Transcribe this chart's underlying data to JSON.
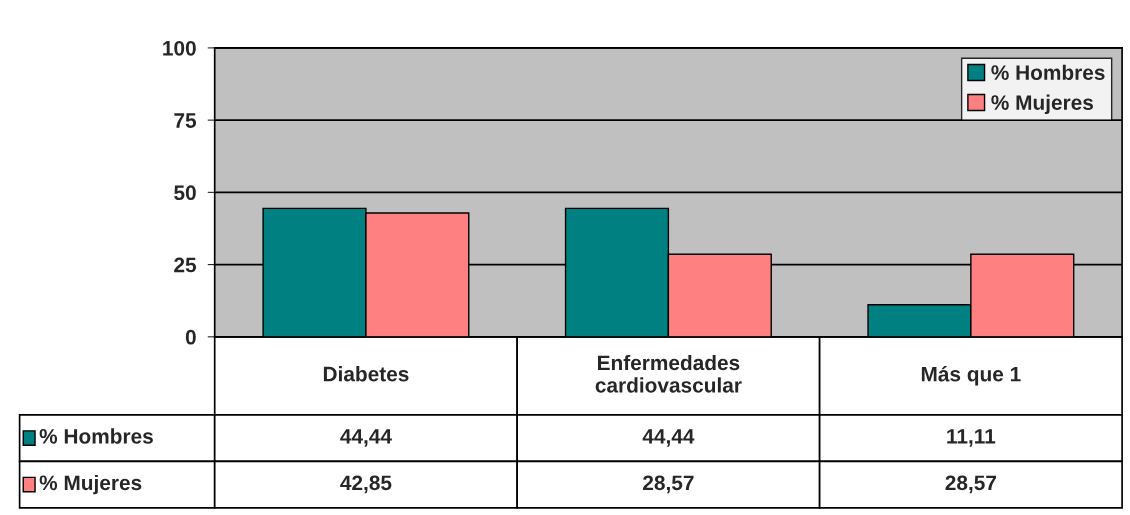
{
  "chart_data": {
    "type": "bar",
    "categories": [
      "Diabetes",
      "Enfermedades\ncardiovascular",
      "Más que 1"
    ],
    "series": [
      {
        "name": "% Hombres",
        "color": "#008080",
        "values": [
          44.44,
          44.44,
          11.11
        ],
        "value_labels": [
          "44,44",
          "44,44",
          "11,11"
        ]
      },
      {
        "name": "% Mujeres",
        "color": "#ff8080",
        "values": [
          42.85,
          28.57,
          28.57
        ],
        "value_labels": [
          "42,85",
          "28,57",
          "28,57"
        ]
      }
    ],
    "ylim": [
      0,
      100
    ],
    "yticks": [
      0,
      25,
      50,
      75,
      100
    ],
    "grid": "y",
    "legend": "top right"
  }
}
